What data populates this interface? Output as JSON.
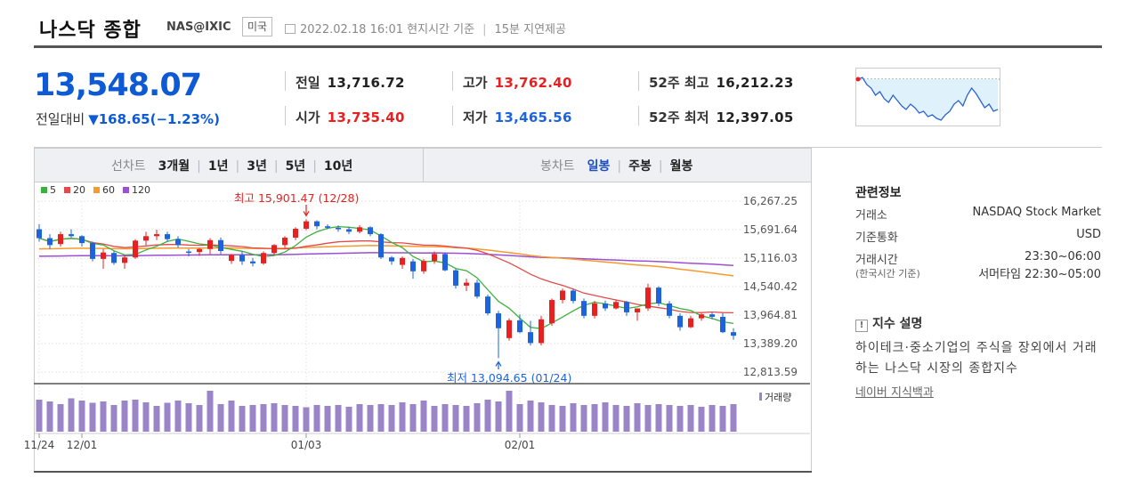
{
  "header": {
    "title": "나스닥 종합",
    "code": "NAS@IXIC",
    "country": "미국",
    "datetime": "2022.02.18 16:01",
    "basis": "현지시간 기준",
    "delay": "15분 지연제공"
  },
  "quote": {
    "price": "13,548.07",
    "change_label": "전일대비",
    "change": "▼168.65",
    "change_pct": "(−1.23%)",
    "prev_close_label": "전일",
    "prev_close": "13,716.72",
    "open_label": "시가",
    "open": "13,735.40",
    "high_label": "고가",
    "high": "13,762.40",
    "low_label": "저가",
    "low": "13,465.56",
    "w52_high_label": "52주 최고",
    "w52_high": "16,212.23",
    "w52_low_label": "52주 최저",
    "w52_low": "12,397.05"
  },
  "toolbar": {
    "line_label": "선차트",
    "line_periods": [
      "3개월",
      "1년",
      "3년",
      "5년",
      "10년"
    ],
    "candle_label": "봉차트",
    "candle_periods": [
      "일봉",
      "주봉",
      "월봉"
    ],
    "active_candle": "일봉"
  },
  "legend": [
    {
      "label": "5",
      "color": "#3cb03c"
    },
    {
      "label": "20",
      "color": "#e24b4b"
    },
    {
      "label": "60",
      "color": "#f59a2e"
    },
    {
      "label": "120",
      "color": "#9b4fd1"
    }
  ],
  "colors": {
    "up": "#e82020",
    "down": "#1d64dc",
    "volume": "#9a85c8",
    "spark_fill": "#dff1fb",
    "spark_line": "#2a62d6"
  },
  "chart_data": {
    "type": "candlestick",
    "y_ticks": [
      "16,267.25",
      "15,691.64",
      "15,116.03",
      "14,540.42",
      "13,964.81",
      "13,389.20",
      "12,813.59"
    ],
    "ylim": [
      12813.59,
      16267.25
    ],
    "x_ticks": [
      "11/24",
      "12/01",
      "01/03",
      "02/01"
    ],
    "high_annotation": "최고 15,901.47 (12/28)",
    "low_annotation": "최저 13,094.65 (01/24)",
    "volume_label": "거래량",
    "ohlc": [
      [
        15700,
        15800,
        15450,
        15520
      ],
      [
        15520,
        15600,
        15300,
        15380
      ],
      [
        15400,
        15650,
        15350,
        15600
      ],
      [
        15600,
        15700,
        15530,
        15560
      ],
      [
        15560,
        15580,
        15350,
        15420
      ],
      [
        15420,
        15450,
        15050,
        15100
      ],
      [
        15100,
        15300,
        14900,
        15230
      ],
      [
        15220,
        15260,
        14980,
        15020
      ],
      [
        15020,
        15180,
        14900,
        15130
      ],
      [
        15130,
        15500,
        15100,
        15470
      ],
      [
        15470,
        15650,
        15380,
        15560
      ],
      [
        15560,
        15690,
        15480,
        15600
      ],
      [
        15600,
        15650,
        15450,
        15500
      ],
      [
        15500,
        15560,
        15330,
        15380
      ],
      [
        15250,
        15300,
        15150,
        15240
      ],
      [
        15240,
        15320,
        15160,
        15300
      ],
      [
        15300,
        15520,
        15200,
        15480
      ],
      [
        15480,
        15530,
        15200,
        15260
      ],
      [
        15060,
        15200,
        15000,
        15180
      ],
      [
        15180,
        15250,
        14980,
        15050
      ],
      [
        15050,
        15120,
        14950,
        15010
      ],
      [
        15010,
        15250,
        14980,
        15220
      ],
      [
        15220,
        15400,
        15180,
        15380
      ],
      [
        15380,
        15560,
        15320,
        15530
      ],
      [
        15530,
        15740,
        15480,
        15710
      ],
      [
        15710,
        15901,
        15680,
        15860
      ],
      [
        15860,
        15880,
        15700,
        15760
      ],
      [
        15760,
        15800,
        15700,
        15730
      ],
      [
        15730,
        15780,
        15650,
        15700
      ],
      [
        15700,
        15750,
        15600,
        15650
      ],
      [
        15650,
        15780,
        15620,
        15740
      ],
      [
        15740,
        15760,
        15560,
        15600
      ],
      [
        15600,
        15620,
        15100,
        15130
      ],
      [
        15130,
        15160,
        14980,
        15050
      ],
      [
        14980,
        15150,
        14900,
        15120
      ],
      [
        15050,
        15100,
        14700,
        14850
      ],
      [
        14850,
        15100,
        14800,
        15060
      ],
      [
        15060,
        15250,
        15000,
        15200
      ],
      [
        15200,
        15220,
        14850,
        14870
      ],
      [
        14870,
        14900,
        14500,
        14560
      ],
      [
        14560,
        14700,
        14450,
        14620
      ],
      [
        14620,
        14680,
        14300,
        14340
      ],
      [
        14340,
        14380,
        13960,
        14000
      ],
      [
        14000,
        14050,
        13094,
        13700
      ],
      [
        13500,
        13900,
        13450,
        13860
      ],
      [
        13860,
        13980,
        13600,
        13620
      ],
      [
        13620,
        13850,
        13350,
        13400
      ],
      [
        13400,
        13950,
        13350,
        13880
      ],
      [
        13800,
        14300,
        13750,
        14270
      ],
      [
        14270,
        14500,
        14200,
        14460
      ],
      [
        14460,
        14500,
        14200,
        14250
      ],
      [
        14250,
        14300,
        13900,
        13950
      ],
      [
        13950,
        14250,
        13900,
        14200
      ],
      [
        14200,
        14260,
        14050,
        14100
      ],
      [
        14100,
        14280,
        14080,
        14230
      ],
      [
        14230,
        14250,
        13950,
        14020
      ],
      [
        14020,
        14100,
        13850,
        14100
      ],
      [
        14100,
        14600,
        14050,
        14520
      ],
      [
        14520,
        14550,
        14150,
        14200
      ],
      [
        14200,
        14250,
        13900,
        13950
      ],
      [
        13950,
        14000,
        13650,
        13720
      ],
      [
        13720,
        13950,
        13700,
        13900
      ],
      [
        13900,
        14000,
        13850,
        13980
      ],
      [
        13980,
        14020,
        13880,
        13930
      ],
      [
        13930,
        14000,
        13600,
        13620
      ],
      [
        13620,
        13700,
        13465,
        13548
      ]
    ],
    "volume": [
      72,
      68,
      62,
      75,
      70,
      65,
      68,
      60,
      70,
      72,
      66,
      58,
      65,
      70,
      64,
      60,
      92,
      62,
      70,
      58,
      60,
      62,
      64,
      60,
      58,
      55,
      60,
      58,
      60,
      56,
      62,
      60,
      62,
      60,
      66,
      62,
      70,
      58,
      62,
      60,
      58,
      64,
      72,
      68,
      92,
      62,
      70,
      66,
      60,
      58,
      64,
      60,
      62,
      66,
      60,
      58,
      64,
      60,
      62,
      60,
      58,
      60,
      56,
      60,
      58,
      62
    ]
  },
  "side": {
    "title": "관련정보",
    "rows": [
      {
        "label": "거래소",
        "value": "NASDAQ Stock Market"
      },
      {
        "label": "기준통화",
        "value": "USD"
      },
      {
        "label": "거래시간",
        "value": "23:30~06:00"
      },
      {
        "label": "(한국시간 기준)",
        "value": "서머타임 22:30~05:00"
      }
    ],
    "desc_title": "지수 설명",
    "desc": "하이테크·중소기업의 주식을 장외에서 거래하는 나스닥 시장의 종합지수",
    "link": "네이버 지식백과"
  }
}
